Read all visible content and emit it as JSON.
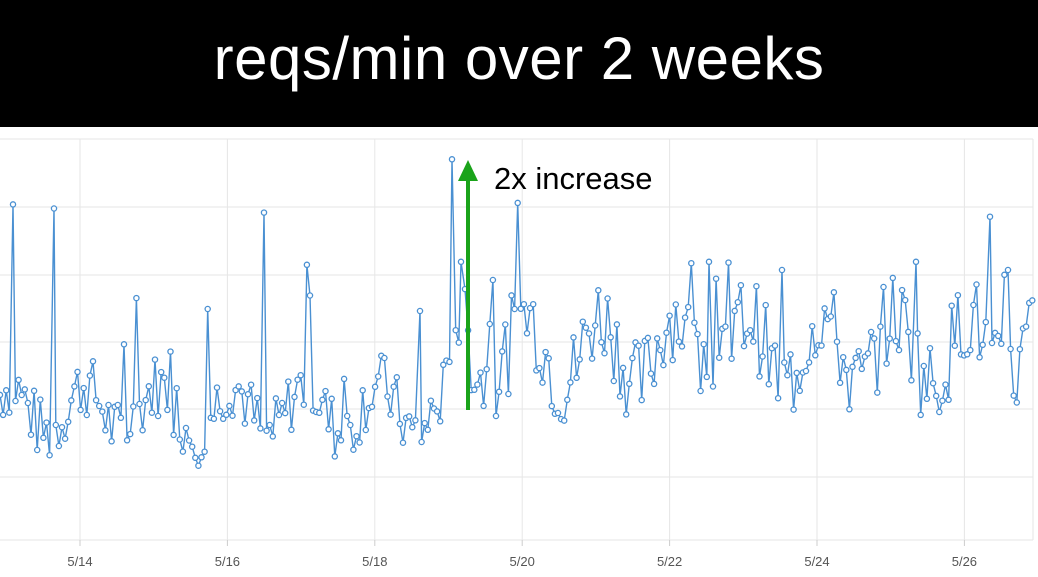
{
  "title": "reqs/min over 2 weeks",
  "colors": {
    "title_background": "#000000",
    "title_text": "#ffffff",
    "series": "#4a90d2",
    "marker_fill": "#ffffff",
    "annotation_arrow": "#1aa31a",
    "grid": "#e6e6e6"
  },
  "chart_data": {
    "type": "line",
    "title": "reqs/min over 2 weeks",
    "xlabel": "",
    "ylabel": "",
    "x_tick_labels": [
      "5/14",
      "5/16",
      "5/18",
      "5/20",
      "5/22",
      "5/24",
      "5/26"
    ],
    "x_range_days": [
      "5/13",
      "5/27"
    ],
    "grid": true,
    "marker": "hollow-circle",
    "series": [
      {
        "name": "",
        "shape": "daily cycle with peaks around midday and troughs at night; baseline roughly doubles after 5/19",
        "values": []
      }
    ],
    "annotation": {
      "text": "2x increase",
      "at_date": "5/19",
      "arrow_direction": "up"
    }
  }
}
